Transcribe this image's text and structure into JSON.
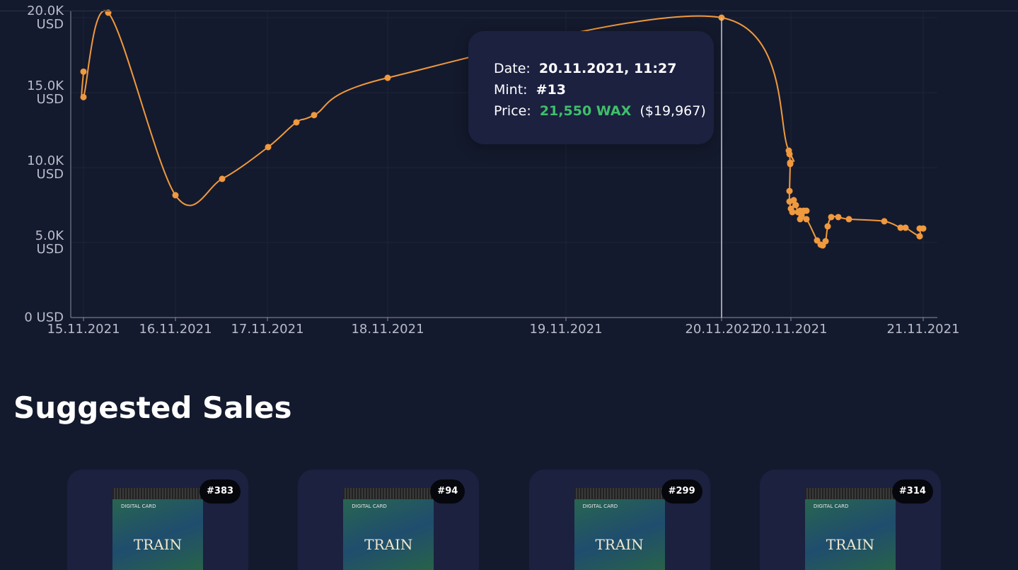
{
  "chart_data": {
    "type": "line",
    "x": [
      18,
      18,
      53,
      148,
      214,
      279,
      319,
      344,
      448,
      920,
      1015,
      1016,
      1017,
      1017,
      1016,
      1016,
      1018,
      1020,
      1022,
      1025,
      1028,
      1031,
      1033,
      1036,
      1040,
      1031,
      1040,
      1055,
      1060,
      1063,
      1067,
      1070,
      1075,
      1085,
      1100,
      1150,
      1173,
      1180,
      1200,
      1200,
      1205
    ],
    "values": [
      16400,
      14700,
      20330,
      8160,
      9250,
      11370,
      13020,
      13500,
      15990,
      20000,
      11130,
      10900,
      10330,
      10240,
      8440,
      7740,
      7260,
      7030,
      7830,
      7500,
      7030,
      7120,
      6790,
      7120,
      7120,
      6560,
      6560,
      5140,
      4860,
      4810,
      5090,
      6080,
      6700,
      6700,
      6560,
      6420,
      5990,
      5990,
      5420,
      5940,
      5940
    ],
    "color": "#f0993e",
    "xlim": [
      0,
      1225
    ],
    "xticks": [
      {
        "value": 18,
        "label": "15.11.2021"
      },
      {
        "value": 148,
        "label": "16.11.2021"
      },
      {
        "value": 278,
        "label": "17.11.2021"
      },
      {
        "value": 448,
        "label": "18.11.2021"
      },
      {
        "value": 700,
        "label": "19.11.2021"
      },
      {
        "value": 920,
        "label": "20.11.2021"
      },
      {
        "value": 1018,
        "label": "20.11.2021"
      },
      {
        "value": 1205,
        "label": "21.11.2021"
      }
    ],
    "ylim": [
      0,
      20000
    ],
    "yticks": [
      {
        "value": 0,
        "label": "0 USD"
      },
      {
        "value": 5000,
        "label": "5.0K USD"
      },
      {
        "value": 10000,
        "label": "10.0K USD"
      },
      {
        "value": 15000,
        "label": "15.0K USD"
      },
      {
        "value": 20000,
        "label": "20.0K USD"
      }
    ],
    "grid": true
  },
  "tooltip": {
    "date_label": "Date:",
    "date": "20.11.2021, 11:27",
    "mint_label": "Mint:",
    "mint": "#13",
    "price_label": "Price:",
    "price": "21,550 WAX",
    "price_usd": "($19,967)"
  },
  "sales": {
    "title": "Suggested Sales",
    "card_label": "DIGITAL CARD",
    "card_art": "TRAIN",
    "cards": [
      {
        "mint": "#383"
      },
      {
        "mint": "#94"
      },
      {
        "mint": "#299"
      },
      {
        "mint": "#314"
      }
    ]
  }
}
